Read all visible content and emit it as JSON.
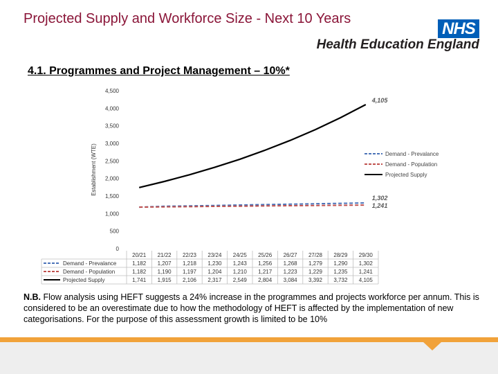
{
  "header": {
    "title": "Projected Supply and Workforce Size - Next 10 Years",
    "logo_nhs": "NHS",
    "logo_org": "Health Education England"
  },
  "section": {
    "subtitle": "4.1. Programmes and Project Management – 10%*"
  },
  "note": {
    "prefix": "N.B.",
    "text": " Flow analysis using HEFT suggests a 24% increase in the programmes and projects workforce per annum. This is considered to be an overestimate due to how the methodology of HEFT is affected by the implementation of new categorisations. For the purpose of this assessment growth is limited to be 10%"
  },
  "colors": {
    "title": "#8a1538",
    "nhs_blue": "#005eb8",
    "footer_orange": "#f1a23a",
    "series_prevalence": "#4a72b8",
    "series_population": "#c0504d",
    "series_supply": "#000000"
  },
  "chart_data": {
    "type": "line",
    "ylabel": "Establishment (WTE)",
    "ylim": [
      0,
      4500
    ],
    "yticks": [
      0,
      500,
      1000,
      1500,
      2000,
      2500,
      3000,
      3500,
      4000,
      4500
    ],
    "ytick_labels": [
      "0",
      "500",
      "1,000",
      "1,500",
      "2,000",
      "2,500",
      "3,000",
      "3,500",
      "4,000",
      "4,500"
    ],
    "categories": [
      "20/21",
      "21/22",
      "22/23",
      "23/24",
      "24/25",
      "25/26",
      "26/27",
      "27/28",
      "28/29",
      "29/30"
    ],
    "series": [
      {
        "name": "Demand - Prevalance",
        "style": "dashed",
        "values": [
          1182,
          1207,
          1218,
          1230,
          1243,
          1256,
          1268,
          1279,
          1290,
          1302
        ],
        "labels": [
          "1,182",
          "1,207",
          "1,218",
          "1,230",
          "1,243",
          "1,256",
          "1,268",
          "1,279",
          "1,290",
          "1,302"
        ],
        "end_label": "1,302"
      },
      {
        "name": "Demand - Population",
        "style": "dashed",
        "values": [
          1182,
          1190,
          1197,
          1204,
          1210,
          1217,
          1223,
          1229,
          1235,
          1241
        ],
        "labels": [
          "1,182",
          "1,190",
          "1,197",
          "1,204",
          "1,210",
          "1,217",
          "1,223",
          "1,229",
          "1,235",
          "1,241"
        ],
        "end_label": "1,241"
      },
      {
        "name": "Projected Supply",
        "style": "solid",
        "values": [
          1741,
          1915,
          2106,
          2317,
          2549,
          2804,
          3084,
          3392,
          3732,
          4105
        ],
        "labels": [
          "1,741",
          "1,915",
          "2,106",
          "2,317",
          "2,549",
          "2,804",
          "3,084",
          "3,392",
          "3,732",
          "4,105"
        ],
        "end_label": "4,105"
      }
    ],
    "legend_position": "right",
    "data_table": true,
    "grid": false
  }
}
